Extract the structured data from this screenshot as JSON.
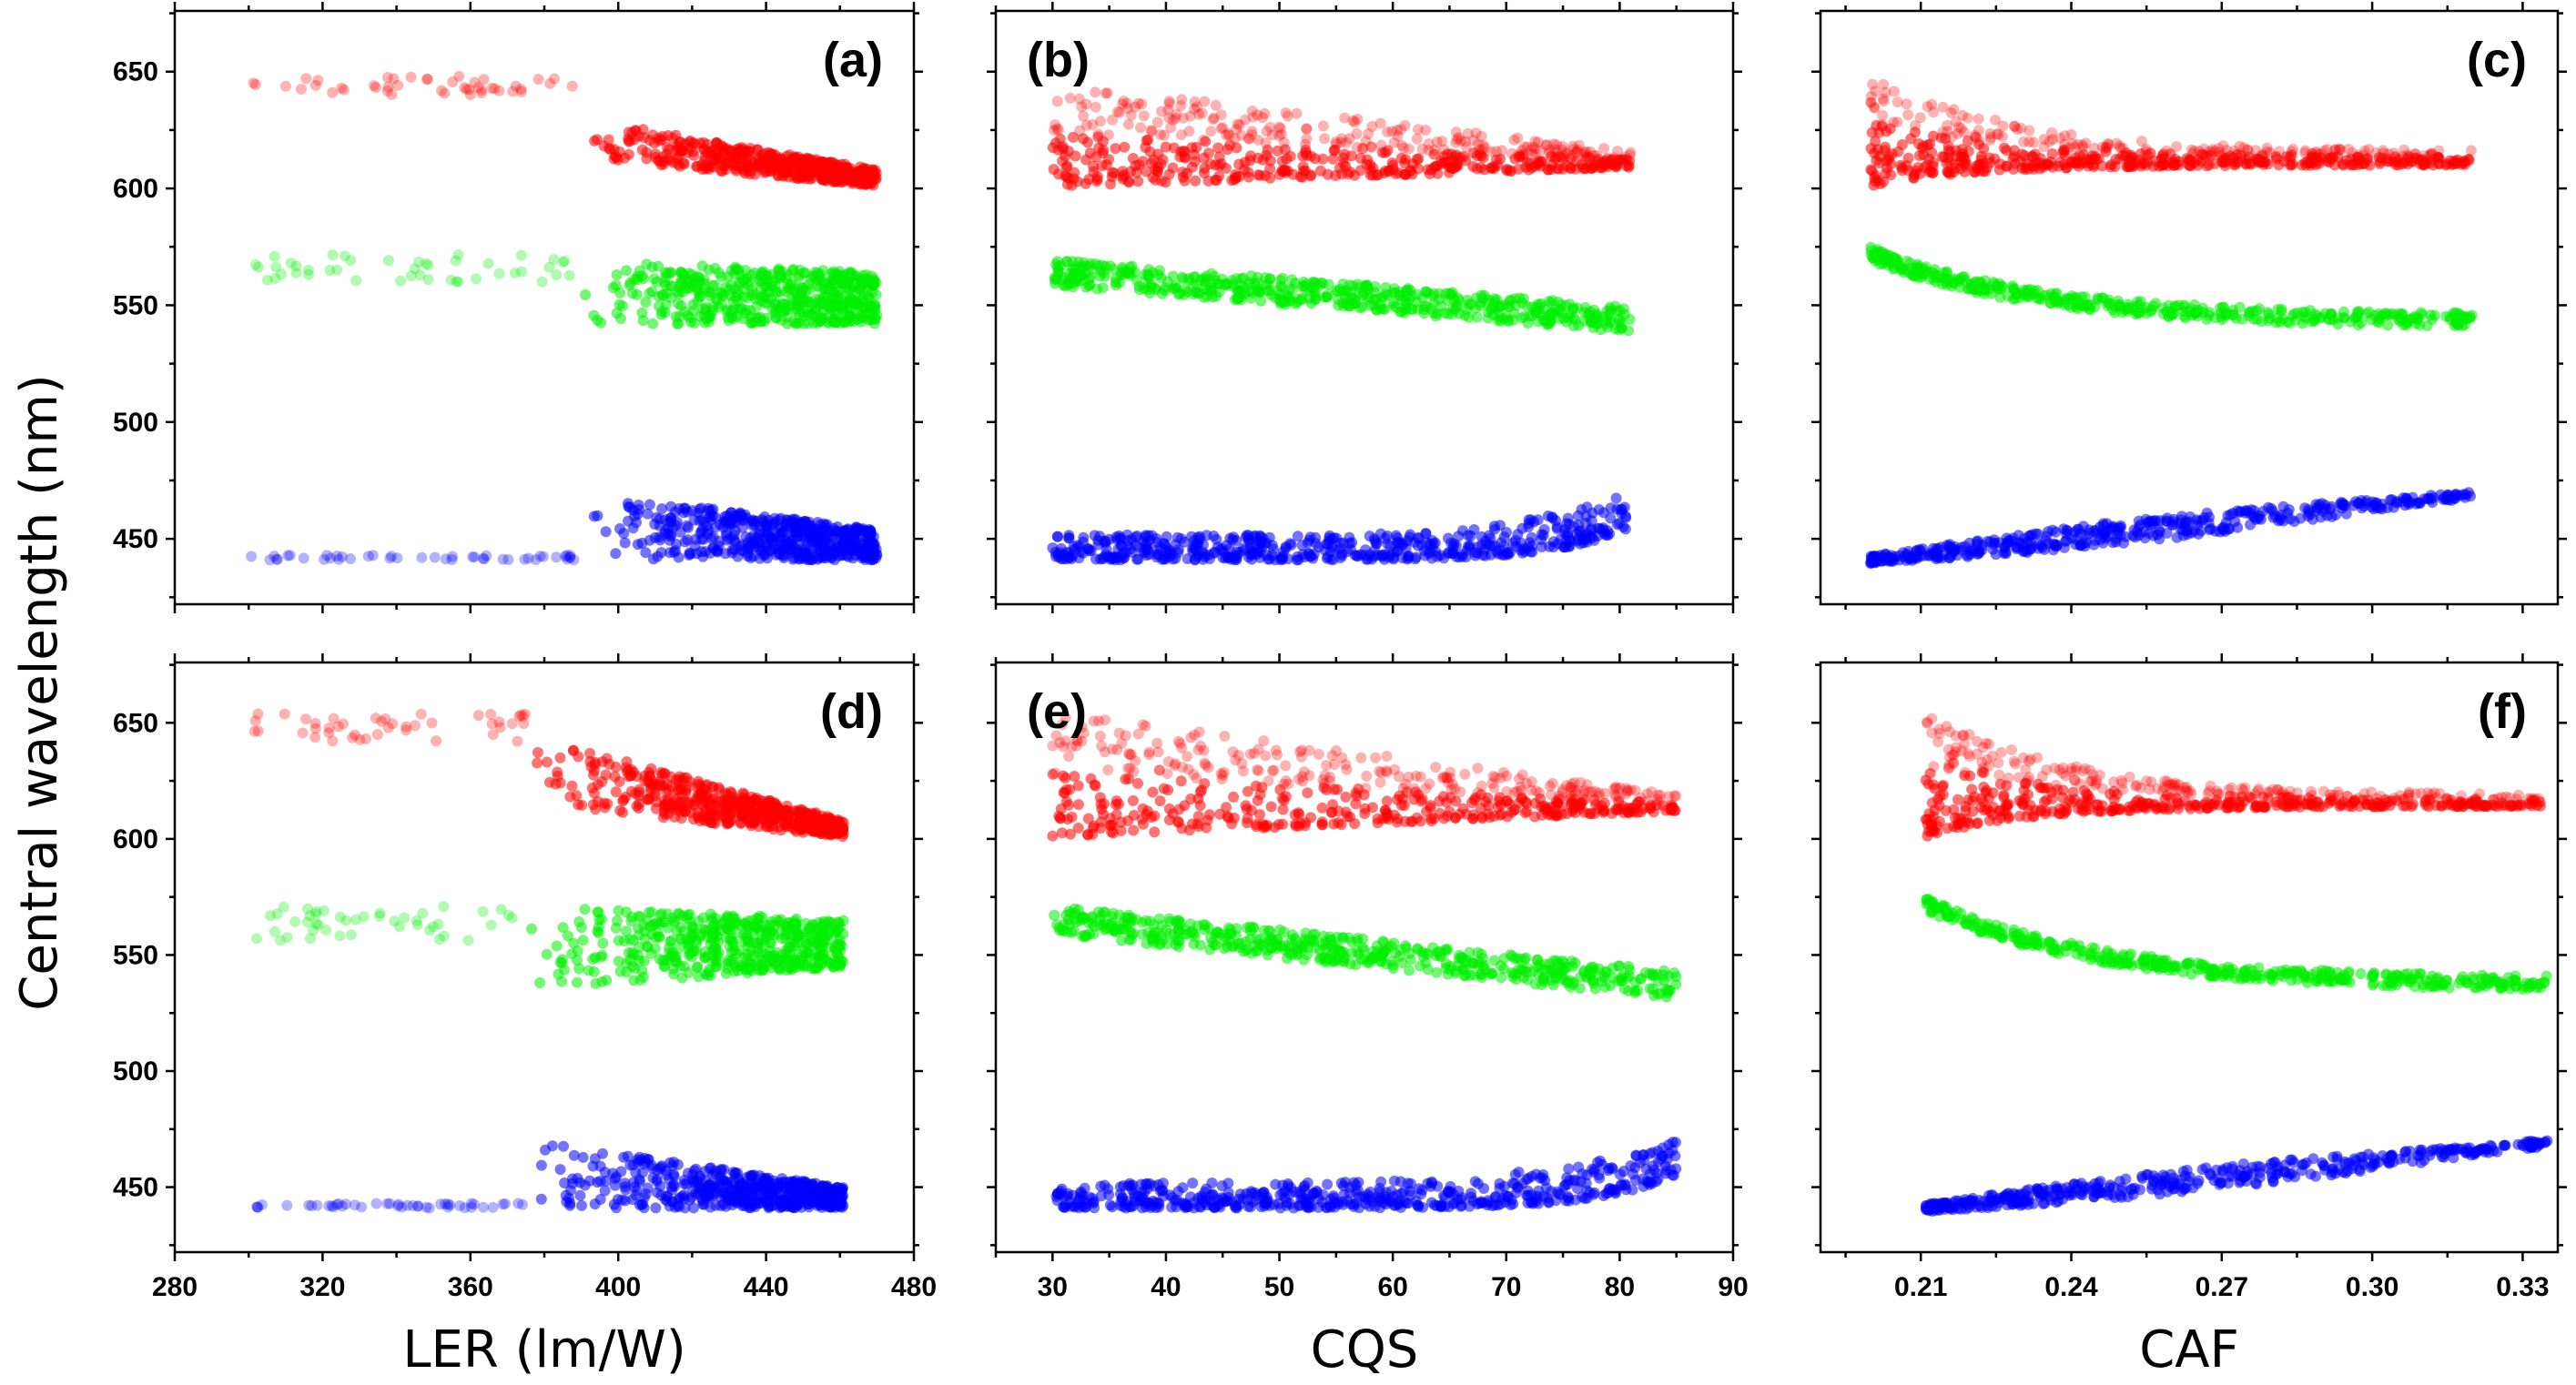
{
  "chart_data": {
    "type": "scatter",
    "figure_ylabel": "Central wavelength (nm)",
    "colors": {
      "red": "#ff0000",
      "green": "#00ee00",
      "blue": "#0000ff"
    },
    "series_names": [
      "red",
      "green",
      "blue"
    ],
    "ylim": [
      422,
      676
    ],
    "yticks": [
      450,
      500,
      550,
      600,
      650
    ],
    "columns": [
      {
        "xlabel": "LER (lm/W)",
        "xlim": [
          280,
          480
        ],
        "xticks": [
          280,
          320,
          360,
          400,
          440,
          480
        ],
        "xtick_labels": [
          "280",
          "320",
          "360",
          "400",
          "440",
          "480"
        ]
      },
      {
        "xlabel": "CQS",
        "xlim": [
          25,
          90
        ],
        "xticks": [
          30,
          40,
          50,
          60,
          70,
          80,
          90
        ],
        "xtick_labels": [
          "30",
          "40",
          "50",
          "60",
          "70",
          "80",
          "90"
        ]
      },
      {
        "xlabel": "CAF",
        "xlim": [
          0.19,
          0.337
        ],
        "xticks": [
          0.21,
          0.24,
          0.27,
          0.3,
          0.33
        ],
        "xtick_labels": [
          "0.21",
          "0.24",
          "0.27",
          "0.30",
          "0.33"
        ]
      }
    ],
    "panels": [
      {
        "label": "(a)",
        "row": 0,
        "col": 0,
        "label_pos": "top-right",
        "series": [
          {
            "name": "red",
            "shape": "tail-wedge",
            "x_start": 300,
            "x_break": 390,
            "x_end": 470,
            "tail_y": [
              640,
              648
            ],
            "body_lower": [
              613,
              601
            ],
            "body_upper": [
              630,
              608
            ]
          },
          {
            "name": "green",
            "shape": "tail-wedge",
            "x_start": 300,
            "x_break": 390,
            "x_end": 470,
            "tail_y": [
              560,
              572
            ],
            "body_lower": [
              542,
              542
            ],
            "body_upper": [
              569,
              564
            ]
          },
          {
            "name": "blue",
            "shape": "tail-wedge",
            "x_start": 300,
            "x_break": 390,
            "x_end": 470,
            "tail_y": [
              441,
              443
            ],
            "body_lower": [
              441,
              441
            ],
            "body_upper": [
              470,
              454
            ]
          }
        ]
      },
      {
        "label": "(b)",
        "row": 0,
        "col": 1,
        "label_pos": "top-left",
        "series": [
          {
            "name": "red",
            "shape": "fan",
            "x_range": [
              30,
              81
            ],
            "lower": [
              601,
              609
            ],
            "upper": [
              645,
              616
            ]
          },
          {
            "name": "green",
            "shape": "band",
            "x_range": [
              30,
              81
            ],
            "center": [
              564,
              544
            ],
            "width": 11
          },
          {
            "name": "blue",
            "shape": "curve-fan",
            "x_range": [
              30,
              81
            ],
            "lower": [
              441,
              441,
              455
            ],
            "upper": [
              452,
              449,
              470
            ]
          }
        ]
      },
      {
        "label": "(c)",
        "row": 0,
        "col": 2,
        "label_pos": "top-right",
        "series": [
          {
            "name": "red",
            "shape": "decay-fan",
            "x_range": [
              0.2,
              0.32
            ],
            "lower": [
              601,
              610
            ],
            "upper": [
              650,
              616
            ]
          },
          {
            "name": "green",
            "shape": "curve-band",
            "x_range": [
              0.2,
              0.32
            ],
            "center": [
              572,
              543
            ],
            "width": 6
          },
          {
            "name": "blue",
            "shape": "line-band",
            "x_range": [
              0.2,
              0.32
            ],
            "center": [
              441,
              469
            ],
            "width": 8
          }
        ]
      },
      {
        "label": "(d)",
        "row": 1,
        "col": 0,
        "label_pos": "top-right",
        "series": [
          {
            "name": "red",
            "shape": "tail-wedge",
            "x_start": 300,
            "x_break": 376,
            "x_end": 461,
            "tail_y": [
              642,
              655
            ],
            "body_lower": [
              615,
              601
            ],
            "body_upper": [
              645,
              608
            ]
          },
          {
            "name": "green",
            "shape": "tail-wedge",
            "x_start": 300,
            "x_break": 376,
            "x_end": 461,
            "tail_y": [
              556,
              572
            ],
            "body_lower": [
              535,
              545
            ],
            "body_upper": [
              572,
              565
            ]
          },
          {
            "name": "blue",
            "shape": "tail-wedge",
            "x_start": 300,
            "x_break": 376,
            "x_end": 461,
            "tail_y": [
              441,
              443
            ],
            "body_lower": [
              441,
              441
            ],
            "body_upper": [
              470,
              450
            ]
          }
        ]
      },
      {
        "label": "(e)",
        "row": 1,
        "col": 1,
        "label_pos": "top-left",
        "series": [
          {
            "name": "red",
            "shape": "fan",
            "x_range": [
              30,
              85
            ],
            "lower": [
              601,
              612
            ],
            "upper": [
              655,
              619
            ]
          },
          {
            "name": "green",
            "shape": "band",
            "x_range": [
              30,
              85
            ],
            "center": [
              565,
              537
            ],
            "width": 12
          },
          {
            "name": "blue",
            "shape": "curve-fan",
            "x_range": [
              30,
              85
            ],
            "lower": [
              441,
              441,
              455
            ],
            "upper": [
              452,
              451,
              470
            ]
          }
        ]
      },
      {
        "label": "(f)",
        "row": 1,
        "col": 2,
        "label_pos": "top-right",
        "series": [
          {
            "name": "red",
            "shape": "decay-fan",
            "x_range": [
              0.211,
              0.335
            ],
            "lower": [
              601,
              614
            ],
            "upper": [
              656,
              619
            ]
          },
          {
            "name": "green",
            "shape": "curve-band",
            "x_range": [
              0.211,
              0.335
            ],
            "center": [
              572,
              537
            ],
            "width": 6
          },
          {
            "name": "blue",
            "shape": "line-band",
            "x_range": [
              0.211,
              0.335
            ],
            "center": [
              441,
              469
            ],
            "width": 8
          }
        ]
      }
    ]
  }
}
